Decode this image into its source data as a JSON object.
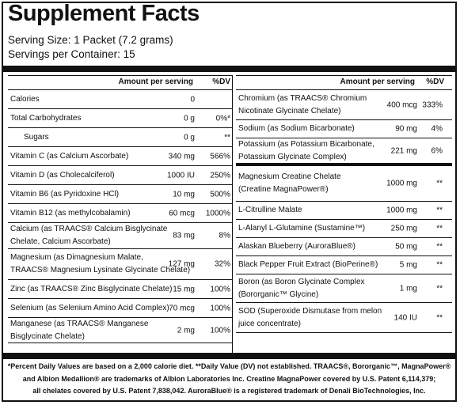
{
  "title": "Supplement Facts",
  "serving_size": "Serving Size: 1 Packet (7.2 grams)",
  "servings_per_container": "Servings per Container: 15",
  "headers": {
    "amount": "Amount per serving",
    "dv": "%DV"
  },
  "left_rows": [
    {
      "name": "Calories",
      "amount": "0",
      "dv": ""
    },
    {
      "name": "Total Carbohydrates",
      "amount": "0 g",
      "dv": "0%*"
    },
    {
      "name": "Sugars",
      "amount": "0 g",
      "dv": "**"
    },
    {
      "name": "Vitamin C (as Calcium Ascorbate)",
      "amount": "340 mg",
      "dv": "566%"
    },
    {
      "name": "Vitamin D (as Cholecalciferol)",
      "amount": "1000 IU",
      "dv": "250%"
    },
    {
      "name": "Vitamin B6 (as Pyridoxine HCl)",
      "amount": "10 mg",
      "dv": "500%"
    },
    {
      "name": "Vitamin B12 (as methylcobalamin)",
      "amount": "60 mcg",
      "dv": "1000%"
    },
    {
      "name": "Calcium (as TRAACS® Calcium Bisglycinate\nChelate, Calcium Ascorbate)",
      "amount": "83 mg",
      "dv": "8%"
    },
    {
      "name": "Magnesium (as Dimagnesium Malate,\nTRAACS® Magnesium Lysinate Glycinate Chelate)",
      "amount": "127 mg",
      "dv": "32%"
    },
    {
      "name": "Zinc (as TRAACS® Zinc Bisglycinate Chelate)",
      "amount": "15 mg",
      "dv": "100%"
    },
    {
      "name": "Selenium (as Selenium Amino Acid Complex)",
      "amount": "70 mcg",
      "dv": "100%"
    },
    {
      "name": "Manganese (as TRAACS® Manganese\nBisglycinate Chelate)",
      "amount": "2 mg",
      "dv": "100%"
    }
  ],
  "right_rows": [
    {
      "name": "Chromium (as TRAACS® Chromium\nNicotinate Glycinate Chelate)",
      "amount": "400 mcg",
      "dv": "333%"
    },
    {
      "name": "Sodium (as Sodium Bicarbonate)",
      "amount": "90 mg",
      "dv": "4%"
    },
    {
      "name": "Potassium (as Potassium Bicarbonate,\nPotassium Glycinate Complex)",
      "amount": "221 mg",
      "dv": "6%"
    },
    {
      "name": "Magnesium Creatine Chelate\n(Creatine MagnaPower®)",
      "amount": "1000 mg",
      "dv": "**"
    },
    {
      "name": "L-Citrulline Malate",
      "amount": "1000 mg",
      "dv": "**"
    },
    {
      "name": "L-Alanyl L-Glutamine (Sustamine™)",
      "amount": "250 mg",
      "dv": "**"
    },
    {
      "name": "Alaskan Blueberry (AuroraBlue®)",
      "amount": "50 mg",
      "dv": "**"
    },
    {
      "name": "Black Pepper Fruit Extract (BioPerine®)",
      "amount": "5 mg",
      "dv": "**"
    },
    {
      "name": "Boron (as Boron Glycinate Complex\n(Bororganic™ Glycine)",
      "amount": "1 mg",
      "dv": "**"
    },
    {
      "name": "SOD (Superoxide Dismutase from melon\njuice concentrate)",
      "amount": "140 IU",
      "dv": "**"
    }
  ],
  "footnote": [
    "*Percent Daily Values are based on a 2,000 calorie diet. **Daily Value (DV) not established. TRAACS®, Bororganic™, MagnaPower®",
    "and Albion Medallion® are trademarks of Albion Laboratories Inc. Creatine MagnaPower covered by U.S. Patent 6,114,379;",
    "all chelates covered by U.S. Patent 7,838,042. AuroraBlue® is a registered trademark of Denali BioTechnologies, Inc."
  ]
}
